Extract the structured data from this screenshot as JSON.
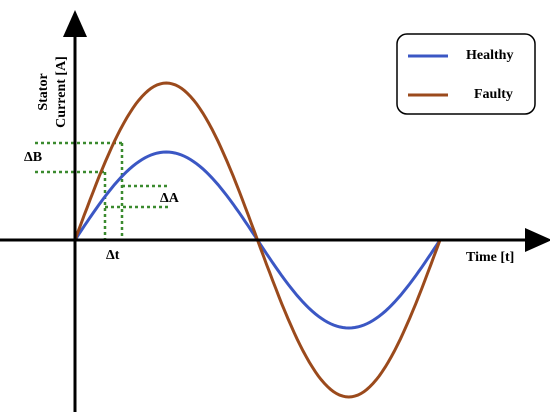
{
  "axes": {
    "y_label_line1": "Stator",
    "y_label_line2": "Current [A]",
    "x_label": "Time [t]"
  },
  "annotations": {
    "delta_b": "ΔB",
    "delta_a": "ΔA",
    "delta_t": "Δt"
  },
  "legend": {
    "items": [
      {
        "label": "Healthy"
      },
      {
        "label": "Faulty"
      }
    ]
  }
}
